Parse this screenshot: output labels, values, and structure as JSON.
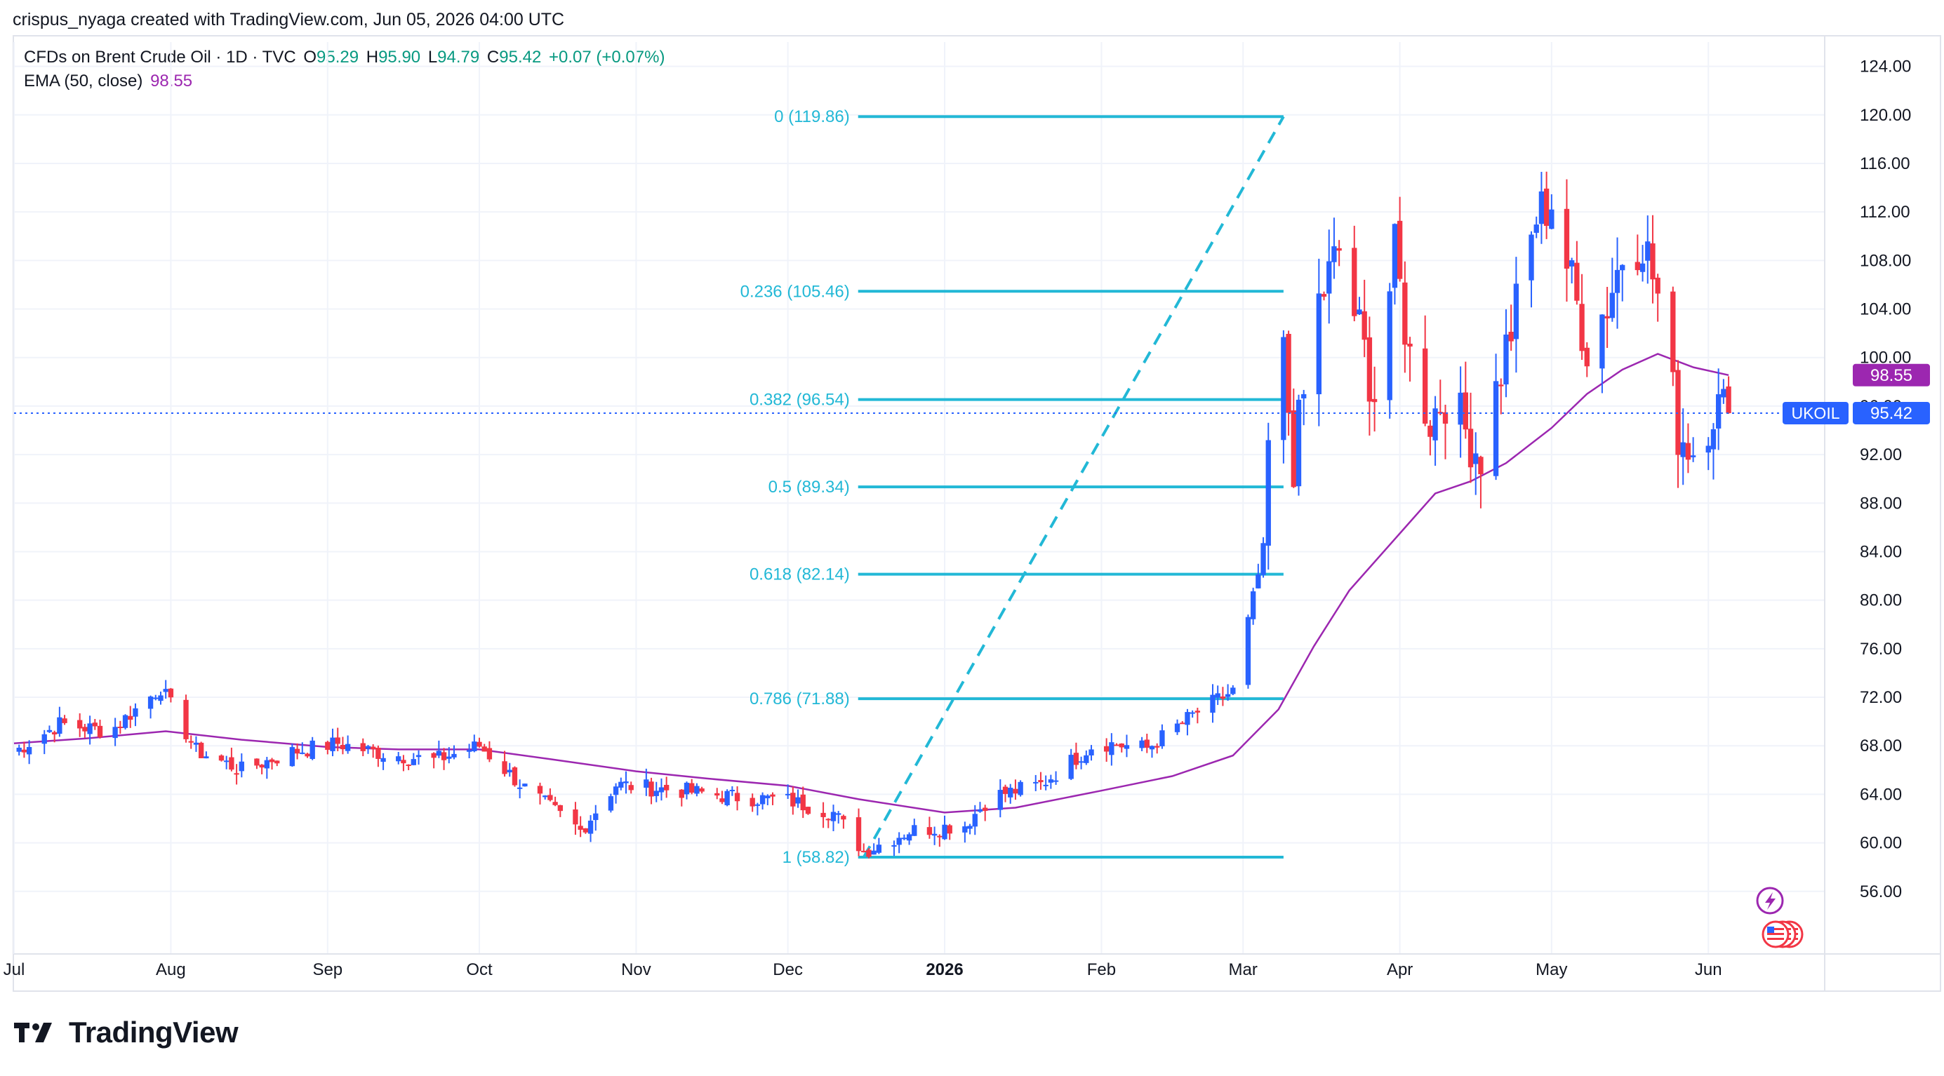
{
  "header": {
    "attribution": "crispus_nyaga created with TradingView.com, Jun 05, 2026 04:00 UTC"
  },
  "legend": {
    "symbol": "CFDs on Brent Crude Oil · 1D · TVC",
    "o_label": "O",
    "o_value": "95.29",
    "h_label": "H",
    "h_value": "95.90",
    "l_label": "L",
    "l_value": "94.79",
    "c_label": "C",
    "c_value": "95.42",
    "change": "+0.07 (+0.07%)",
    "ema_label": "EMA (50, close)",
    "ema_value": "98.55"
  },
  "footer": {
    "brand": "TradingView"
  },
  "chart_data": {
    "type": "candlestick",
    "symbol": "UKOIL",
    "price_axis": {
      "min": 52,
      "max": 126,
      "ticks": [
        124,
        120,
        116,
        112,
        108,
        104,
        100,
        96,
        92,
        88,
        84,
        80,
        76,
        72,
        68,
        64,
        60,
        56
      ],
      "tick_labels": [
        "124.00",
        "120.00",
        "116.00",
        "112.00",
        "108.00",
        "104.00",
        "100.00",
        "96.00",
        "92.00",
        "88.00",
        "84.00",
        "80.00",
        "76.00",
        "72.00",
        "68.00",
        "64.00",
        "60.00",
        "56.00"
      ]
    },
    "time_axis": {
      "start": "2025-07-01",
      "end": "2026-06-24",
      "ticks": [
        {
          "date": "2025-07-01",
          "label": "Jul",
          "bold": false
        },
        {
          "date": "2025-08-01",
          "label": "Aug",
          "bold": false
        },
        {
          "date": "2025-09-01",
          "label": "Sep",
          "bold": false
        },
        {
          "date": "2025-10-01",
          "label": "Oct",
          "bold": false
        },
        {
          "date": "2025-11-01",
          "label": "Nov",
          "bold": false
        },
        {
          "date": "2025-12-01",
          "label": "Dec",
          "bold": false
        },
        {
          "date": "2026-01-01",
          "label": "2026",
          "bold": true
        },
        {
          "date": "2026-02-01",
          "label": "Feb",
          "bold": false
        },
        {
          "date": "2026-03-01",
          "label": "Mar",
          "bold": false
        },
        {
          "date": "2026-04-01",
          "label": "Apr",
          "bold": false
        },
        {
          "date": "2026-05-01",
          "label": "May",
          "bold": false
        },
        {
          "date": "2026-06-01",
          "label": "Jun",
          "bold": false
        }
      ]
    },
    "grid": true,
    "last_price": {
      "value": 95.42,
      "label": "95.42",
      "tag": "UKOIL"
    },
    "ema": {
      "name": "EMA (50, close)",
      "last_value": 98.55,
      "last_label": "98.55",
      "points": [
        {
          "date": "2025-07-01",
          "v": 68.2
        },
        {
          "date": "2025-07-15",
          "v": 68.6
        },
        {
          "date": "2025-07-31",
          "v": 69.2
        },
        {
          "date": "2025-08-15",
          "v": 68.5
        },
        {
          "date": "2025-09-01",
          "v": 67.9
        },
        {
          "date": "2025-09-15",
          "v": 67.7
        },
        {
          "date": "2025-10-01",
          "v": 67.7
        },
        {
          "date": "2025-10-15",
          "v": 66.9
        },
        {
          "date": "2025-11-01",
          "v": 65.9
        },
        {
          "date": "2025-11-15",
          "v": 65.3
        },
        {
          "date": "2025-12-01",
          "v": 64.7
        },
        {
          "date": "2025-12-15",
          "v": 63.6
        },
        {
          "date": "2026-01-01",
          "v": 62.5
        },
        {
          "date": "2026-01-15",
          "v": 62.9
        },
        {
          "date": "2026-02-01",
          "v": 64.3
        },
        {
          "date": "2026-02-15",
          "v": 65.5
        },
        {
          "date": "2026-02-27",
          "v": 67.2
        },
        {
          "date": "2026-03-08",
          "v": 71.0
        },
        {
          "date": "2026-03-15",
          "v": 76.2
        },
        {
          "date": "2026-03-22",
          "v": 80.8
        },
        {
          "date": "2026-04-01",
          "v": 85.5
        },
        {
          "date": "2026-04-08",
          "v": 88.8
        },
        {
          "date": "2026-04-15",
          "v": 89.8
        },
        {
          "date": "2026-04-22",
          "v": 91.3
        },
        {
          "date": "2026-05-01",
          "v": 94.2
        },
        {
          "date": "2026-05-08",
          "v": 97.0
        },
        {
          "date": "2026-05-15",
          "v": 99.0
        },
        {
          "date": "2026-05-22",
          "v": 100.3
        },
        {
          "date": "2026-05-29",
          "v": 99.2
        },
        {
          "date": "2026-06-05",
          "v": 98.55
        }
      ]
    },
    "fibonacci": {
      "start_date": "2025-12-16",
      "end_date": "2026-03-09",
      "low": 58.82,
      "high": 119.86,
      "levels": [
        {
          "ratio": "0",
          "value": 119.86,
          "label": "0 (119.86)"
        },
        {
          "ratio": "0.236",
          "value": 105.46,
          "label": "0.236 (105.46)"
        },
        {
          "ratio": "0.382",
          "value": 96.54,
          "label": "0.382 (96.54)"
        },
        {
          "ratio": "0.5",
          "value": 89.34,
          "label": "0.5 (89.34)"
        },
        {
          "ratio": "0.618",
          "value": 82.14,
          "label": "0.618 (82.14)"
        },
        {
          "ratio": "0.786",
          "value": 71.88,
          "label": "0.786 (71.88)"
        },
        {
          "ratio": "1",
          "value": 58.82,
          "label": "1 (58.82)"
        }
      ]
    },
    "key_closes": [
      {
        "date": "2025-07-01",
        "c": 67.5
      },
      {
        "date": "2025-07-10",
        "c": 69.8
      },
      {
        "date": "2025-07-20",
        "c": 69.2
      },
      {
        "date": "2025-07-30",
        "c": 72.8
      },
      {
        "date": "2025-08-06",
        "c": 67.6
      },
      {
        "date": "2025-08-15",
        "c": 66.0
      },
      {
        "date": "2025-08-25",
        "c": 67.5
      },
      {
        "date": "2025-09-03",
        "c": 68.2
      },
      {
        "date": "2025-09-10",
        "c": 67.5
      },
      {
        "date": "2025-09-22",
        "c": 66.8
      },
      {
        "date": "2025-10-01",
        "c": 68.0
      },
      {
        "date": "2025-10-10",
        "c": 64.5
      },
      {
        "date": "2025-10-21",
        "c": 61.0
      },
      {
        "date": "2025-10-28",
        "c": 64.8
      },
      {
        "date": "2025-11-10",
        "c": 64.3
      },
      {
        "date": "2025-11-20",
        "c": 63.8
      },
      {
        "date": "2025-12-01",
        "c": 63.5
      },
      {
        "date": "2025-12-10",
        "c": 62.5
      },
      {
        "date": "2025-12-16",
        "c": 59.3
      },
      {
        "date": "2025-12-25",
        "c": 61.0
      },
      {
        "date": "2026-01-05",
        "c": 61.5
      },
      {
        "date": "2026-01-10",
        "c": 63.8
      },
      {
        "date": "2026-01-20",
        "c": 64.8
      },
      {
        "date": "2026-01-31",
        "c": 68.3
      },
      {
        "date": "2026-02-10",
        "c": 67.8
      },
      {
        "date": "2026-02-20",
        "c": 70.8
      },
      {
        "date": "2026-02-27",
        "c": 72.5
      },
      {
        "date": "2026-03-02",
        "c": 78.2
      },
      {
        "date": "2026-03-05",
        "c": 84.0
      },
      {
        "date": "2026-03-06",
        "c": 92.5
      },
      {
        "date": "2026-03-09",
        "c": 100.0
      },
      {
        "date": "2026-03-11",
        "c": 91.5
      },
      {
        "date": "2026-03-16",
        "c": 104.5
      },
      {
        "date": "2026-03-20",
        "c": 108.8
      },
      {
        "date": "2026-03-24",
        "c": 102.0
      },
      {
        "date": "2026-03-27",
        "c": 97.0
      },
      {
        "date": "2026-03-31",
        "c": 108.5
      },
      {
        "date": "2026-04-03",
        "c": 100.0
      },
      {
        "date": "2026-04-07",
        "c": 95.0
      },
      {
        "date": "2026-04-10",
        "c": 97.0
      },
      {
        "date": "2026-04-14",
        "c": 94.0
      },
      {
        "date": "2026-04-17",
        "c": 92.0
      },
      {
        "date": "2026-04-21",
        "c": 99.0
      },
      {
        "date": "2026-04-24",
        "c": 104.0
      },
      {
        "date": "2026-04-28",
        "c": 111.5
      },
      {
        "date": "2026-05-01",
        "c": 113.0
      },
      {
        "date": "2026-05-05",
        "c": 106.0
      },
      {
        "date": "2026-05-08",
        "c": 101.0
      },
      {
        "date": "2026-05-12",
        "c": 104.5
      },
      {
        "date": "2026-05-15",
        "c": 108.5
      },
      {
        "date": "2026-05-19",
        "c": 110.0
      },
      {
        "date": "2026-05-22",
        "c": 105.0
      },
      {
        "date": "2026-05-26",
        "c": 94.0
      },
      {
        "date": "2026-05-29",
        "c": 92.5
      },
      {
        "date": "2026-06-02",
        "c": 96.0
      },
      {
        "date": "2026-06-05",
        "c": 95.42
      }
    ],
    "colors": {
      "up": "#2962ff",
      "down": "#f23645",
      "ema": "#9c27b0",
      "fib": "#22b8d6",
      "grid": "#f0f3fa",
      "last_price": "#2962ff",
      "ema_badge": "#9c27b0"
    }
  },
  "icons": {
    "event_flash": "lightning-icon",
    "event_flag": "us-flag-icon"
  }
}
